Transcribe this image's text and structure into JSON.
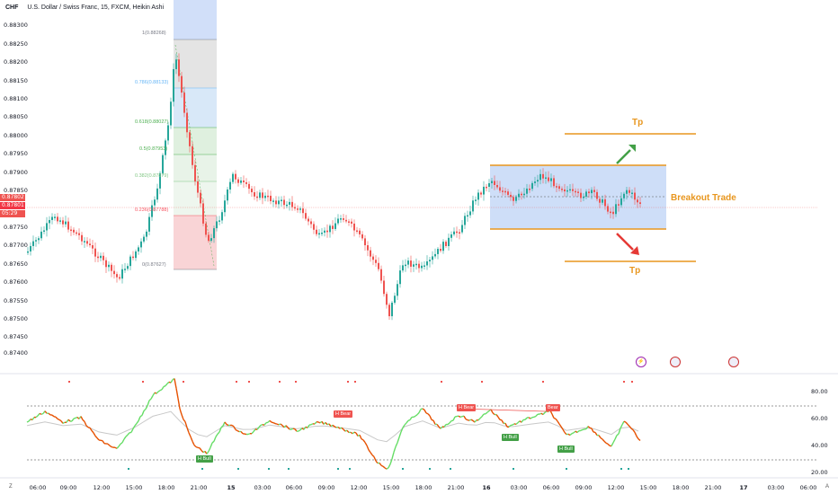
{
  "header": {
    "currency": "CHF",
    "title": "U.S. Dollar / Swiss Franc, 15, FXCM, Heikin Ashi"
  },
  "price_axis": {
    "labels": [
      "0.88300",
      "0.88250",
      "0.88200",
      "0.88150",
      "0.88100",
      "0.88050",
      "0.88000",
      "0.87950",
      "0.87900",
      "0.87850",
      "0.87750",
      "0.87700",
      "0.87650",
      "0.87600",
      "0.87550",
      "0.87500",
      "0.87450",
      "0.87400"
    ],
    "tags": [
      "0.87802",
      "0.87801",
      "05:29"
    ]
  },
  "indicator_axis": {
    "labels": [
      "80.00",
      "60.00",
      "40.00",
      "20.00"
    ]
  },
  "time_axis": {
    "labels": [
      "06:00",
      "09:00",
      "12:00",
      "15:00",
      "18:00",
      "21:00",
      "15",
      "03:00",
      "06:00",
      "09:00",
      "12:00",
      "15:00",
      "18:00",
      "21:00",
      "16",
      "03:00",
      "06:00",
      "09:00",
      "12:00",
      "15:00",
      "18:00",
      "21:00",
      "17",
      "03:00",
      "06:00"
    ]
  },
  "fib_levels": [
    {
      "label": "1(0.88268)",
      "color": "#787b86"
    },
    {
      "label": "0.786(0.88133)",
      "color": "#64b5f6"
    },
    {
      "label": "0.618(0.88027)",
      "color": "#4caf50"
    },
    {
      "label": "0.5(0.87953)",
      "color": "#4caf50"
    },
    {
      "label": "0.382(0.87879)",
      "color": "#81c784"
    },
    {
      "label": "0.236(0.87788)",
      "color": "#f7525f"
    },
    {
      "label": "0(0.87627)",
      "color": "#787b86"
    }
  ],
  "annotations": {
    "tp_top": "Tp",
    "tp_bottom": "Tp",
    "breakout": "Breakout Trade"
  },
  "indicator_labels": {
    "h_bull_1": "H Bull",
    "h_bear_1": "H Bear",
    "h_bear_2": "H Bear",
    "h_bear_3": "Bear",
    "h_bull_2": "H Bull",
    "h_bull_3": "H Bull"
  },
  "corner": {
    "left": "Z",
    "right": "A"
  },
  "colors": {
    "up": "#26a69a",
    "down": "#ef5350",
    "accent": "#e8961e",
    "box": "#c6d8f7"
  }
}
